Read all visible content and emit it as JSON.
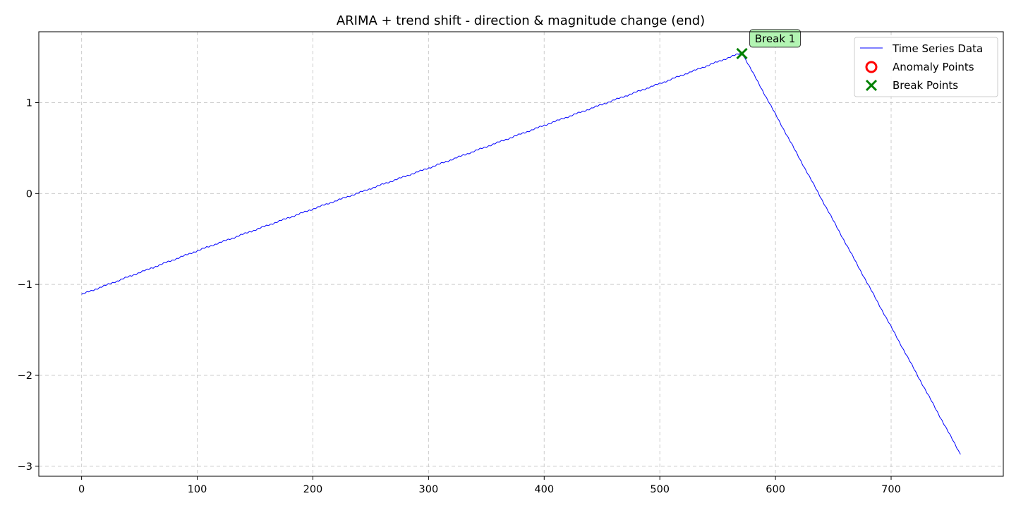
{
  "chart_data": {
    "type": "line",
    "title": "ARIMA + trend shift - direction & magnitude change (end)",
    "xlabel": "",
    "ylabel": "",
    "xlim": [
      -37,
      797
    ],
    "ylim": [
      -3.11,
      1.78
    ],
    "xticks": [
      0,
      100,
      200,
      300,
      400,
      500,
      600,
      700
    ],
    "yticks": [
      -3,
      -2,
      -1,
      0,
      1
    ],
    "ytick_labels": [
      "−3",
      "−2",
      "−1",
      "0",
      "1"
    ],
    "grid": true,
    "legend_position": "top-right",
    "colors": {
      "line": "#0000ff",
      "anomaly": "#ff0000",
      "break": "#008000",
      "annotation_bg": "#b3f5b3",
      "grid": "#cccccc"
    },
    "series": [
      {
        "name": "Time Series Data",
        "kind": "line",
        "x": [
          0,
          100,
          200,
          300,
          400,
          500,
          571,
          760
        ],
        "y": [
          -1.11,
          -0.63,
          -0.17,
          0.28,
          0.75,
          1.21,
          1.55,
          -2.87
        ]
      }
    ],
    "anomaly_points": {
      "name": "Anomaly Points",
      "x": [],
      "y": []
    },
    "break_points": {
      "name": "Break Points",
      "x": [
        571
      ],
      "y": [
        1.54
      ]
    },
    "annotations": [
      {
        "text": "Break 1",
        "x": 571,
        "y": 1.54
      }
    ]
  }
}
